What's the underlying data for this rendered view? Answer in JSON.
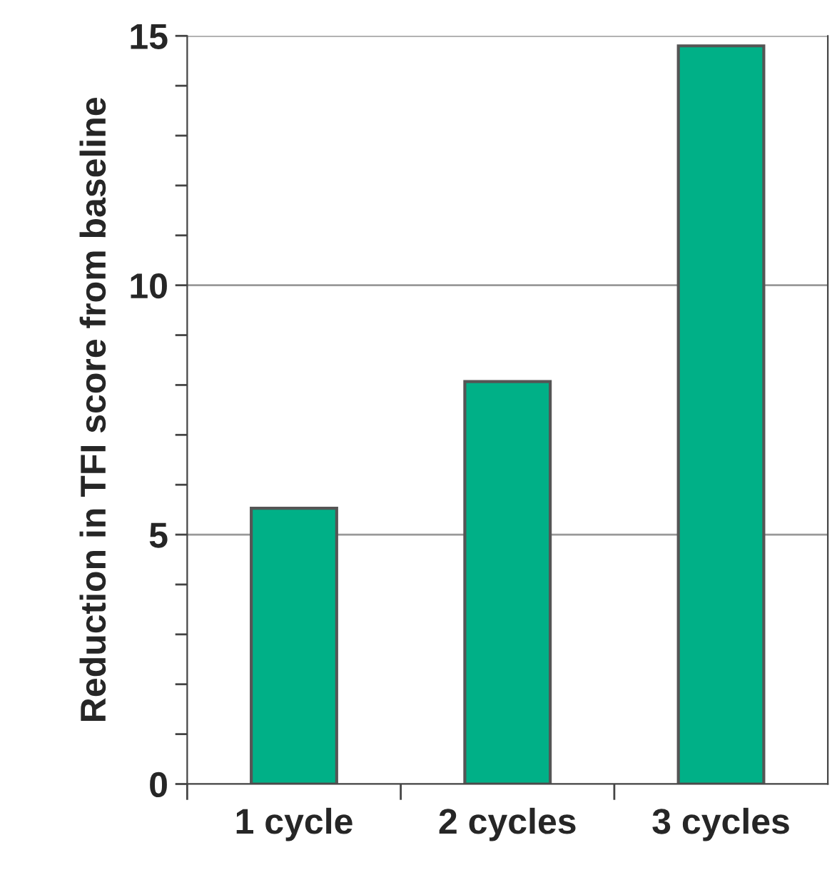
{
  "chart_data": {
    "type": "bar",
    "ylabel": "Reduction in TFI score from baseline",
    "categories": [
      "1 cycle",
      "2 cycles",
      "3 cycles"
    ],
    "values": [
      5.53,
      8.07,
      14.8
    ],
    "color": "#00b087",
    "ylim": [
      0,
      15
    ],
    "yticks": [
      0,
      {
        "value": 1,
        "label": null
      },
      {
        "value": 2,
        "label": null
      },
      {
        "value": 3,
        "label": null
      },
      {
        "value": 4,
        "label": null
      },
      5,
      {
        "value": 6,
        "label": null
      },
      {
        "value": 7,
        "label": null
      },
      {
        "value": 8,
        "label": null
      },
      {
        "value": 9,
        "label": null
      },
      10,
      {
        "value": 11,
        "label": null
      },
      {
        "value": 12,
        "label": null
      },
      {
        "value": 13,
        "label": null
      },
      {
        "value": 14,
        "label": null
      },
      15
    ],
    "grid": "y"
  }
}
